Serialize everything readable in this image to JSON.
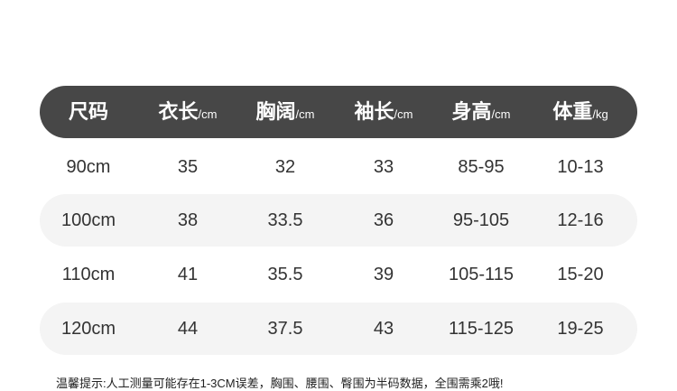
{
  "table": {
    "header": [
      {
        "label": "尺码",
        "unit": ""
      },
      {
        "label": "衣长",
        "unit": "/cm"
      },
      {
        "label": "胸阔",
        "unit": "/cm"
      },
      {
        "label": "袖长",
        "unit": "/cm"
      },
      {
        "label": "身高",
        "unit": "/cm"
      },
      {
        "label": "体重",
        "unit": "/kg"
      }
    ],
    "rows": [
      [
        "90cm",
        "35",
        "32",
        "33",
        "85-95",
        "10-13"
      ],
      [
        "100cm",
        "38",
        "33.5",
        "36",
        "95-105",
        "12-16"
      ],
      [
        "110cm",
        "41",
        "35.5",
        "39",
        "105-115",
        "15-20"
      ],
      [
        "120cm",
        "44",
        "37.5",
        "43",
        "115-125",
        "19-25"
      ]
    ],
    "header_color": "#474747",
    "stripe_color": "#f4f4f4"
  },
  "note": "温馨提示:人工测量可能存在1-3CM误差，胸围、腰围、臀围为半码数据，全围需乘2哦!"
}
